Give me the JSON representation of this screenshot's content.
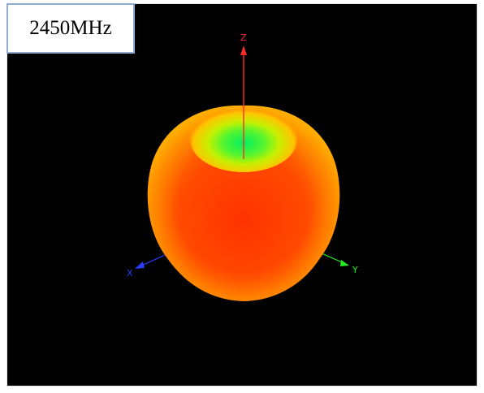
{
  "frequency_label": "2450MHz",
  "axes": {
    "z": {
      "label": "Z",
      "color": "#ff2a2a"
    },
    "x": {
      "label": "X",
      "color": "#2a3cff"
    },
    "y": {
      "label": "Y",
      "color": "#22ee22"
    }
  },
  "pattern": {
    "shape": "radiation-pattern-3d",
    "colors": {
      "low": "#22ff44",
      "mid": "#ffd400",
      "high": "#ff4a00"
    }
  }
}
